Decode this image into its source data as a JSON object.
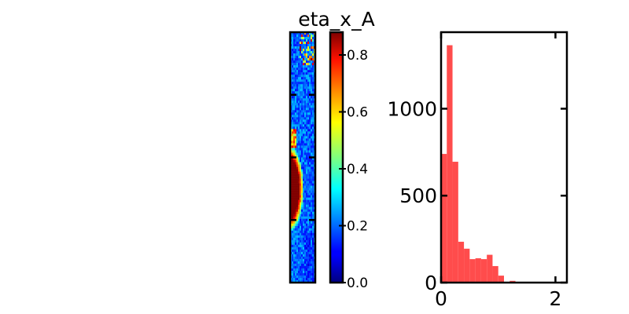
{
  "figure": {
    "title": "eta_x_A"
  },
  "chart_data": [
    {
      "type": "heatmap",
      "title": "eta_x_A",
      "colormap": "jet",
      "grid": false,
      "tick_marks_left": 4,
      "tick_marks_right": 4,
      "description_values": "Narrow strip map; values mostly ~0.1-0.3 (blue), high values ~0.85-0.9 (dark red) in a lens near the middle-left, scattered yellow/red speckle near the top."
    },
    {
      "type": "colorbar",
      "colormap": "jet",
      "range": [
        0.0,
        0.88
      ],
      "ticks": [
        0.0,
        0.2,
        0.4,
        0.6,
        0.8
      ],
      "tick_labels": [
        "0.0",
        "0.2",
        "0.4",
        "0.6",
        "0.8"
      ]
    },
    {
      "type": "bar",
      "subtype": "histogram",
      "color": "#ff4c4c",
      "bin_width": 0.1,
      "bin_edges_start": 0.0,
      "values": [
        740,
        1365,
        695,
        235,
        195,
        135,
        140,
        135,
        160,
        95,
        40,
        0,
        10,
        3,
        0,
        0,
        0,
        0,
        0,
        0
      ],
      "xlim": [
        0,
        2.2
      ],
      "ylim": [
        0,
        1440
      ],
      "xticks": [
        0,
        2
      ],
      "xtick_labels": [
        "0",
        "2"
      ],
      "yticks": [
        0,
        500,
        1000
      ],
      "ytick_labels": [
        "0",
        "500",
        "1000"
      ],
      "xlabel": "",
      "ylabel": "",
      "grid": false
    }
  ]
}
